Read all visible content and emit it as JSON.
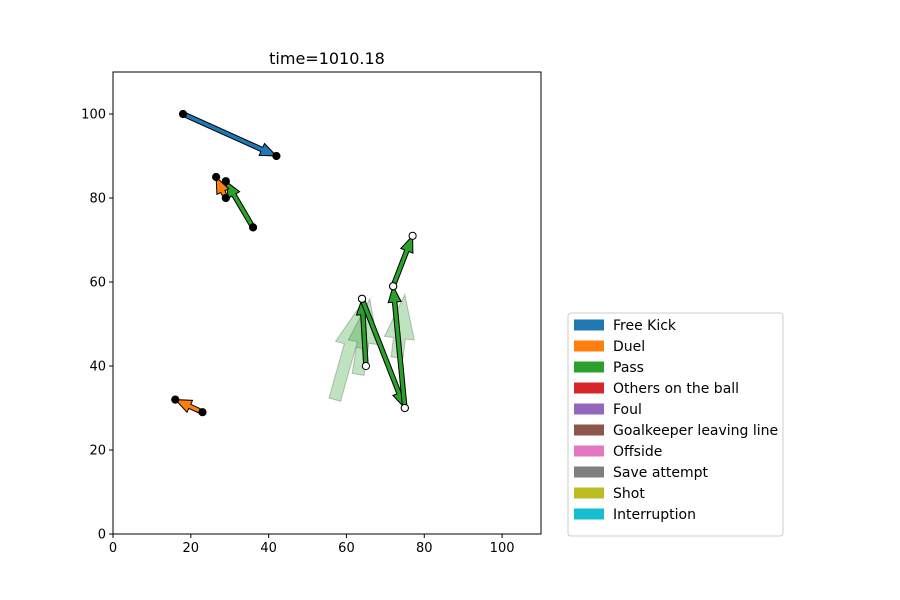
{
  "chart_data": {
    "type": "scatter",
    "title": "time=1010.18",
    "xlim": [
      0,
      110
    ],
    "ylim": [
      0,
      110
    ],
    "x_ticks": [
      0,
      20,
      40,
      60,
      80,
      100
    ],
    "y_ticks": [
      0,
      20,
      40,
      60,
      80,
      100
    ],
    "grid": false,
    "legend_position": "lower-right-outside",
    "legend": [
      {
        "label": "Free Kick",
        "color": "#1f77b4"
      },
      {
        "label": "Duel",
        "color": "#ff7f0e"
      },
      {
        "label": "Pass",
        "color": "#2ca02c"
      },
      {
        "label": "Others on the ball",
        "color": "#d62728"
      },
      {
        "label": "Foul",
        "color": "#9467bd"
      },
      {
        "label": "Goalkeeper leaving line",
        "color": "#8c564b"
      },
      {
        "label": "Offside",
        "color": "#e377c2"
      },
      {
        "label": "Save attempt",
        "color": "#7f7f7f"
      },
      {
        "label": "Shot",
        "color": "#bcbd22"
      },
      {
        "label": "Interruption",
        "color": "#17becf"
      }
    ],
    "events": [
      {
        "type": "Free Kick",
        "start": [
          18,
          100
        ],
        "end": [
          42,
          90
        ],
        "marker": "filled"
      },
      {
        "type": "Pass",
        "start": [
          36,
          73
        ],
        "end": [
          29,
          84
        ],
        "marker": "filled"
      },
      {
        "type": "Duel",
        "start": [
          29,
          80
        ],
        "end": [
          26.5,
          85
        ],
        "marker": "filled"
      },
      {
        "type": "Duel",
        "start": [
          23,
          29
        ],
        "end": [
          16,
          32
        ],
        "marker": "filled"
      },
      {
        "type": "Pass",
        "start": [
          65,
          40
        ],
        "end": [
          64,
          56
        ],
        "marker": "open"
      },
      {
        "type": "Pass",
        "start": [
          64,
          56
        ],
        "end": [
          75,
          30
        ],
        "marker": "open"
      },
      {
        "type": "Pass",
        "start": [
          75,
          30
        ],
        "end": [
          72,
          59
        ],
        "marker": "open"
      },
      {
        "type": "Pass",
        "start": [
          72,
          59
        ],
        "end": [
          77,
          71
        ],
        "marker": "open"
      }
    ],
    "shadow_arrows": [
      {
        "start": [
          57,
          32
        ],
        "end": [
          64,
          55
        ],
        "color": "#2ca02c"
      },
      {
        "start": [
          63,
          38
        ],
        "end": [
          66,
          56
        ],
        "color": "#2ca02c"
      },
      {
        "start": [
          73,
          42
        ],
        "end": [
          75,
          57
        ],
        "color": "#2ca02c"
      }
    ]
  }
}
